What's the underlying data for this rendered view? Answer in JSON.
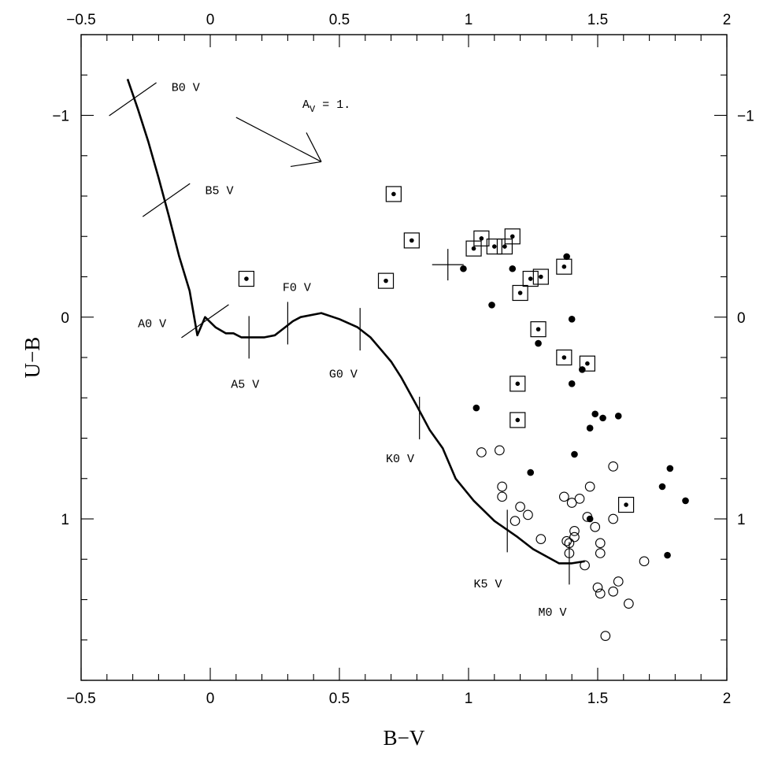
{
  "chart_data": {
    "type": "scatter",
    "xlabel": "B−V",
    "ylabel": "U−B",
    "xlim": [
      -0.5,
      2.0
    ],
    "ylim": [
      -1.4,
      1.8
    ],
    "y_inverted": true,
    "xticks": [
      -0.5,
      0,
      0.5,
      1,
      1.5,
      2
    ],
    "xtick_labels": [
      "−0.5",
      "0",
      "0.5",
      "1",
      "1.5",
      "2"
    ],
    "yticks": [
      -1,
      0,
      1
    ],
    "ytick_labels": [
      "−1",
      "0",
      "1"
    ],
    "sequence_curve": [
      [
        -0.32,
        -1.18
      ],
      [
        -0.28,
        -1.03
      ],
      [
        -0.24,
        -0.87
      ],
      [
        -0.2,
        -0.69
      ],
      [
        -0.16,
        -0.5
      ],
      [
        -0.12,
        -0.3
      ],
      [
        -0.08,
        -0.13
      ],
      [
        -0.05,
        0.09
      ],
      [
        -0.02,
        0.0
      ],
      [
        0.02,
        0.05
      ],
      [
        0.06,
        0.08
      ],
      [
        0.09,
        0.08
      ],
      [
        0.12,
        0.1
      ],
      [
        0.15,
        0.1
      ],
      [
        0.18,
        0.1
      ],
      [
        0.21,
        0.1
      ],
      [
        0.25,
        0.09
      ],
      [
        0.29,
        0.05
      ],
      [
        0.32,
        0.02
      ],
      [
        0.35,
        0.0
      ],
      [
        0.43,
        -0.02
      ],
      [
        0.5,
        0.01
      ],
      [
        0.57,
        0.05
      ],
      [
        0.62,
        0.1
      ],
      [
        0.66,
        0.16
      ],
      [
        0.7,
        0.22
      ],
      [
        0.74,
        0.3
      ],
      [
        0.8,
        0.44
      ],
      [
        0.85,
        0.56
      ],
      [
        0.9,
        0.65
      ],
      [
        0.95,
        0.8
      ],
      [
        1.02,
        0.91
      ],
      [
        1.1,
        1.01
      ],
      [
        1.19,
        1.09
      ],
      [
        1.25,
        1.15
      ],
      [
        1.35,
        1.22
      ],
      [
        1.4,
        1.22
      ],
      [
        1.45,
        1.21
      ]
    ],
    "spectral_types": [
      {
        "label": "B0 V",
        "x": -0.3,
        "y": -1.08,
        "mark": "diag",
        "lx": -0.15,
        "ly": -1.14
      },
      {
        "label": "B5 V",
        "x": -0.17,
        "y": -0.58,
        "mark": "diag",
        "lx": -0.02,
        "ly": -0.63
      },
      {
        "label": "A0 V",
        "x": -0.02,
        "y": 0.02,
        "mark": "diag",
        "lx": -0.28,
        "ly": 0.03
      },
      {
        "label": "A5 V",
        "x": 0.15,
        "y": 0.1,
        "mark": "vert",
        "lx": 0.08,
        "ly": 0.33
      },
      {
        "label": "F0 V",
        "x": 0.3,
        "y": 0.03,
        "mark": "vert",
        "lx": 0.28,
        "ly": -0.15
      },
      {
        "label": "G0 V",
        "x": 0.58,
        "y": 0.06,
        "mark": "vert",
        "lx": 0.46,
        "ly": 0.28
      },
      {
        "label": "K0 V",
        "x": 0.81,
        "y": 0.5,
        "mark": "vert",
        "lx": 0.68,
        "ly": 0.7
      },
      {
        "label": "K5 V",
        "x": 1.15,
        "y": 1.06,
        "mark": "vert",
        "lx": 1.02,
        "ly": 1.32
      },
      {
        "label": "M0 V",
        "x": 1.39,
        "y": 1.22,
        "mark": "vert",
        "lx": 1.27,
        "ly": 1.46
      }
    ],
    "reddening_vector": {
      "label_main": "A",
      "label_sub": "V",
      "label_value": " = 1.",
      "from": [
        0.1,
        -0.99
      ],
      "to": [
        0.43,
        -0.77
      ]
    },
    "cross_marker": {
      "x": 0.92,
      "y": -0.26
    },
    "series": [
      {
        "marker": "dot-in-square",
        "points": [
          [
            0.14,
            -0.19
          ],
          [
            0.68,
            -0.18
          ],
          [
            0.71,
            -0.61
          ],
          [
            0.78,
            -0.38
          ],
          [
            1.02,
            -0.34
          ],
          [
            1.05,
            -0.39
          ],
          [
            1.1,
            -0.35
          ],
          [
            1.14,
            -0.35
          ],
          [
            1.17,
            -0.4
          ],
          [
            1.2,
            -0.12
          ],
          [
            1.24,
            -0.19
          ],
          [
            1.28,
            -0.2
          ],
          [
            1.27,
            0.06
          ],
          [
            1.37,
            -0.25
          ],
          [
            1.37,
            0.2
          ],
          [
            1.46,
            0.23
          ],
          [
            1.19,
            0.33
          ],
          [
            1.19,
            0.51
          ],
          [
            1.61,
            0.93
          ]
        ]
      },
      {
        "marker": "filled-circle",
        "points": [
          [
            0.98,
            -0.24
          ],
          [
            1.09,
            -0.06
          ],
          [
            1.17,
            -0.24
          ],
          [
            1.38,
            -0.3
          ],
          [
            1.4,
            0.01
          ],
          [
            1.27,
            0.13
          ],
          [
            1.44,
            0.26
          ],
          [
            1.4,
            0.33
          ],
          [
            1.03,
            0.45
          ],
          [
            1.49,
            0.48
          ],
          [
            1.52,
            0.5
          ],
          [
            1.58,
            0.49
          ],
          [
            1.47,
            0.55
          ],
          [
            1.41,
            0.68
          ],
          [
            1.24,
            0.77
          ],
          [
            1.78,
            0.75
          ],
          [
            1.75,
            0.84
          ],
          [
            1.84,
            0.91
          ],
          [
            1.47,
            1.0
          ],
          [
            1.77,
            1.18
          ]
        ]
      },
      {
        "marker": "open-circle",
        "points": [
          [
            1.05,
            0.67
          ],
          [
            1.12,
            0.66
          ],
          [
            1.13,
            0.84
          ],
          [
            1.13,
            0.89
          ],
          [
            1.2,
            0.94
          ],
          [
            1.23,
            0.98
          ],
          [
            1.18,
            1.01
          ],
          [
            1.28,
            1.1
          ],
          [
            1.37,
            0.89
          ],
          [
            1.4,
            0.92
          ],
          [
            1.43,
            0.9
          ],
          [
            1.47,
            0.84
          ],
          [
            1.56,
            0.74
          ],
          [
            1.46,
            0.99
          ],
          [
            1.49,
            1.04
          ],
          [
            1.56,
            1.0
          ],
          [
            1.41,
            1.06
          ],
          [
            1.41,
            1.09
          ],
          [
            1.38,
            1.11
          ],
          [
            1.39,
            1.12
          ],
          [
            1.39,
            1.17
          ],
          [
            1.51,
            1.12
          ],
          [
            1.51,
            1.17
          ],
          [
            1.45,
            1.23
          ],
          [
            1.5,
            1.34
          ],
          [
            1.51,
            1.37
          ],
          [
            1.56,
            1.36
          ],
          [
            1.58,
            1.31
          ],
          [
            1.62,
            1.42
          ],
          [
            1.68,
            1.21
          ],
          [
            1.53,
            1.58
          ]
        ]
      }
    ]
  }
}
